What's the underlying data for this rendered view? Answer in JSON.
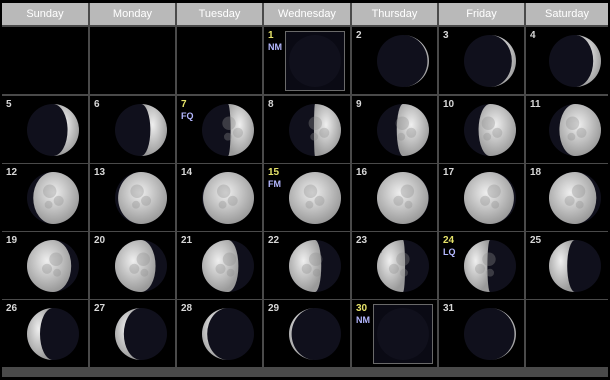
{
  "weekdays": [
    "Sunday",
    "Monday",
    "Tuesday",
    "Wednesday",
    "Thursday",
    "Friday",
    "Saturday"
  ],
  "days": [
    {
      "day": "1",
      "phase": "NM",
      "lit": 0.0,
      "waxing": true,
      "key": true
    },
    {
      "day": "2",
      "phase": "",
      "lit": 0.03,
      "waxing": true
    },
    {
      "day": "3",
      "phase": "",
      "lit": 0.08,
      "waxing": true
    },
    {
      "day": "4",
      "phase": "",
      "lit": 0.15,
      "waxing": true
    },
    {
      "day": "5",
      "phase": "",
      "lit": 0.22,
      "waxing": true
    },
    {
      "day": "6",
      "phase": "",
      "lit": 0.32,
      "waxing": true
    },
    {
      "day": "7",
      "phase": "FQ",
      "lit": 0.45,
      "waxing": true,
      "key": true
    },
    {
      "day": "8",
      "phase": "",
      "lit": 0.52,
      "waxing": true
    },
    {
      "day": "9",
      "phase": "",
      "lit": 0.62,
      "waxing": true
    },
    {
      "day": "10",
      "phase": "",
      "lit": 0.72,
      "waxing": true
    },
    {
      "day": "11",
      "phase": "",
      "lit": 0.8,
      "waxing": true
    },
    {
      "day": "12",
      "phase": "",
      "lit": 0.88,
      "waxing": true
    },
    {
      "day": "13",
      "phase": "",
      "lit": 0.94,
      "waxing": true
    },
    {
      "day": "14",
      "phase": "",
      "lit": 0.98,
      "waxing": true
    },
    {
      "day": "15",
      "phase": "FM",
      "lit": 1.0,
      "waxing": true,
      "key": true
    },
    {
      "day": "16",
      "phase": "",
      "lit": 0.99,
      "waxing": false
    },
    {
      "day": "17",
      "phase": "",
      "lit": 0.96,
      "waxing": false
    },
    {
      "day": "18",
      "phase": "",
      "lit": 0.91,
      "waxing": false
    },
    {
      "day": "19",
      "phase": "",
      "lit": 0.85,
      "waxing": false
    },
    {
      "day": "20",
      "phase": "",
      "lit": 0.78,
      "waxing": false
    },
    {
      "day": "21",
      "phase": "",
      "lit": 0.7,
      "waxing": false
    },
    {
      "day": "22",
      "phase": "",
      "lit": 0.62,
      "waxing": false
    },
    {
      "day": "23",
      "phase": "",
      "lit": 0.54,
      "waxing": false
    },
    {
      "day": "24",
      "phase": "LQ",
      "lit": 0.45,
      "waxing": false,
      "key": true
    },
    {
      "day": "25",
      "phase": "",
      "lit": 0.35,
      "waxing": false
    },
    {
      "day": "26",
      "phase": "",
      "lit": 0.25,
      "waxing": false
    },
    {
      "day": "27",
      "phase": "",
      "lit": 0.17,
      "waxing": false
    },
    {
      "day": "28",
      "phase": "",
      "lit": 0.1,
      "waxing": false
    },
    {
      "day": "29",
      "phase": "",
      "lit": 0.05,
      "waxing": false
    },
    {
      "day": "30",
      "phase": "NM",
      "lit": 0.0,
      "waxing": true,
      "key": true
    },
    {
      "day": "31",
      "phase": "",
      "lit": 0.03,
      "waxing": true
    }
  ],
  "colors": {
    "lit": "#d6d6d6",
    "litShade": "#9a9a9a",
    "dark": "#10101c"
  }
}
